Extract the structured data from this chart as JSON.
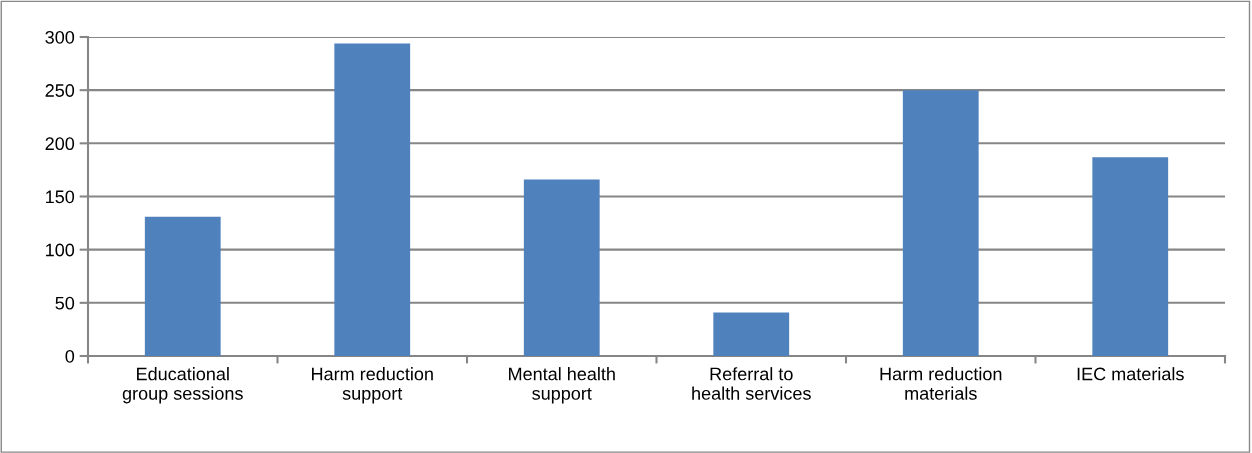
{
  "chart_data": {
    "type": "bar",
    "categories": [
      "Educational\ngroup sessions",
      "Harm reduction\nsupport",
      "Mental health\nsupport",
      "Referral to\nhealth services",
      "Harm reduction\nmaterials",
      "IEC materials"
    ],
    "values": [
      131,
      294,
      166,
      41,
      250,
      187
    ],
    "color": "#4f81bd",
    "ylim": [
      0,
      300
    ],
    "yticks": [
      0,
      50,
      100,
      150,
      200,
      250,
      300
    ],
    "grid": "y"
  }
}
